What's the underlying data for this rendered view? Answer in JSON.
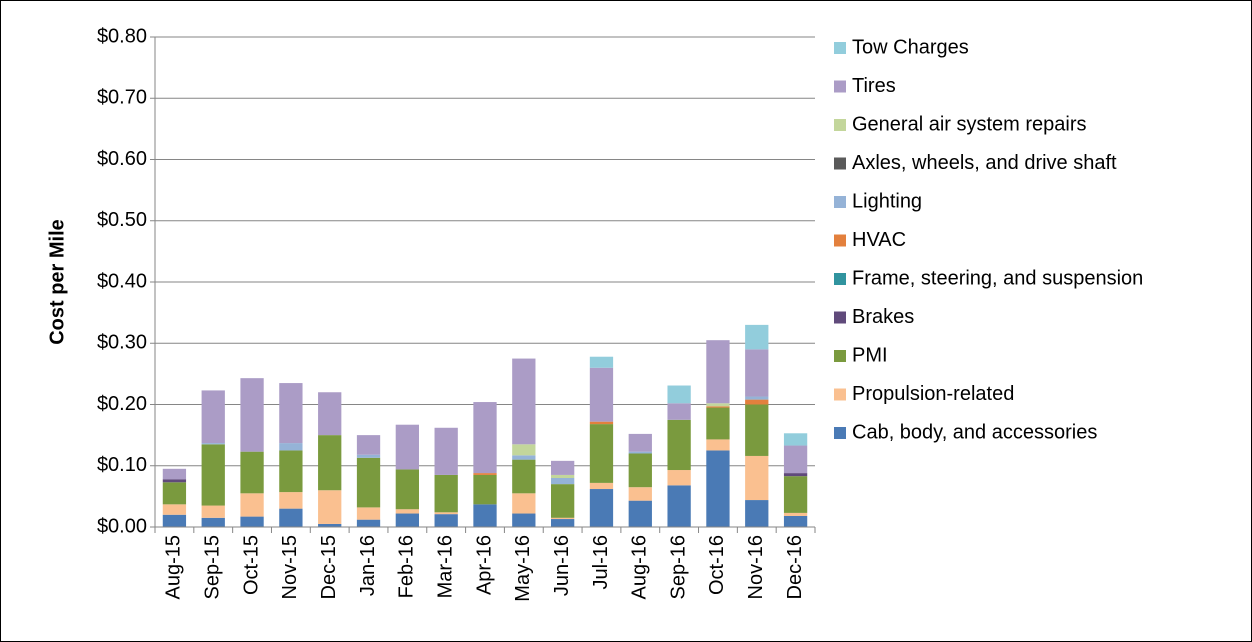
{
  "chart_data": {
    "type": "stacked-bar",
    "y_label": "Cost per Mile",
    "categories": [
      "Aug-15",
      "Sep-15",
      "Oct-15",
      "Nov-15",
      "Dec-15",
      "Jan-16",
      "Feb-16",
      "Mar-16",
      "Apr-16",
      "May-16",
      "Jun-16",
      "Jul-16",
      "Aug-16",
      "Sep-16",
      "Oct-16",
      "Nov-16",
      "Dec-16"
    ],
    "ylim": [
      0,
      0.8
    ],
    "yticks": [
      {
        "value": 0,
        "label": "$0.00"
      },
      {
        "value": 0.1,
        "label": "$0.10"
      },
      {
        "value": 0.2,
        "label": "$0.20"
      },
      {
        "value": 0.3,
        "label": "$0.30"
      },
      {
        "value": 0.4,
        "label": "$0.40"
      },
      {
        "value": 0.5,
        "label": "$0.50"
      },
      {
        "value": 0.6,
        "label": "$0.60"
      },
      {
        "value": 0.7,
        "label": "$0.70"
      },
      {
        "value": 0.8,
        "label": "$0.80"
      }
    ],
    "grid": true,
    "legend": "right",
    "series": [
      {
        "name": "Cab, body, and accessories",
        "color": "#4a7ab5",
        "values": [
          0.02,
          0.015,
          0.017,
          0.03,
          0.005,
          0.012,
          0.022,
          0.021,
          0.037,
          0.022,
          0.013,
          0.062,
          0.043,
          0.068,
          0.125,
          0.044,
          0.018
        ]
      },
      {
        "name": "Propulsion-related",
        "color": "#fac090",
        "values": [
          0.017,
          0.02,
          0.038,
          0.027,
          0.055,
          0.02,
          0.007,
          0.003,
          0,
          0.033,
          0.002,
          0.01,
          0.022,
          0.025,
          0.018,
          0.072,
          0.005
        ]
      },
      {
        "name": "PMI",
        "color": "#7a9a3e",
        "values": [
          0.036,
          0.1,
          0.068,
          0.068,
          0.09,
          0.081,
          0.065,
          0.061,
          0.048,
          0.055,
          0.055,
          0.096,
          0.055,
          0.082,
          0.052,
          0.084,
          0.06
        ]
      },
      {
        "name": "Brakes",
        "color": "#604a7b",
        "values": [
          0.005,
          0,
          0,
          0,
          0,
          0,
          0,
          0,
          0,
          0,
          0,
          0,
          0,
          0,
          0,
          0,
          0.005
        ]
      },
      {
        "name": "Frame, steering, and suspension",
        "color": "#31949f",
        "values": [
          0,
          0,
          0,
          0,
          0,
          0,
          0,
          0,
          0,
          0,
          0,
          0,
          0,
          0,
          0,
          0,
          0
        ]
      },
      {
        "name": "HVAC",
        "color": "#e3803d",
        "values": [
          0,
          0,
          0,
          0,
          0,
          0,
          0,
          0,
          0.003,
          0,
          0,
          0.004,
          0,
          0,
          0.002,
          0.008,
          0
        ]
      },
      {
        "name": "Lighting",
        "color": "#95b3d7",
        "values": [
          0,
          0.002,
          0,
          0.012,
          0,
          0.005,
          0,
          0,
          0,
          0.007,
          0.01,
          0,
          0.003,
          0,
          0,
          0.005,
          0
        ]
      },
      {
        "name": "Axles, wheels, and drive shaft",
        "color": "#5a5a5a",
        "values": [
          0,
          0,
          0,
          0,
          0,
          0,
          0,
          0,
          0,
          0,
          0,
          0,
          0,
          0,
          0,
          0,
          0
        ]
      },
      {
        "name": "General air system repairs",
        "color": "#c3d69b",
        "values": [
          0,
          0,
          0,
          0,
          0,
          0,
          0,
          0,
          0,
          0.018,
          0.005,
          0,
          0,
          0,
          0.005,
          0,
          0
        ]
      },
      {
        "name": "Tires",
        "color": "#ab9cc6",
        "values": [
          0.017,
          0.086,
          0.12,
          0.098,
          0.07,
          0.032,
          0.073,
          0.077,
          0.116,
          0.14,
          0.023,
          0.088,
          0.029,
          0.027,
          0.103,
          0.077,
          0.045
        ]
      },
      {
        "name": "Tow Charges",
        "color": "#92cddc",
        "values": [
          0,
          0,
          0,
          0,
          0,
          0,
          0,
          0,
          0,
          0,
          0,
          0.018,
          0,
          0.029,
          0,
          0.04,
          0.02
        ]
      }
    ]
  }
}
